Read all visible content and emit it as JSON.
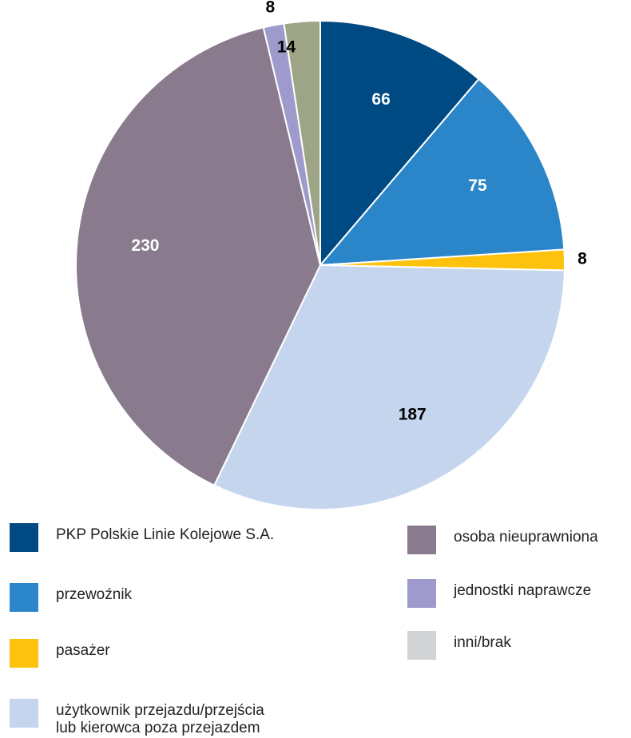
{
  "chart_data": {
    "type": "pie",
    "categories": [
      "PKP Polskie Linie Kolejowe S.A.",
      "przewoźnik",
      "pasażer",
      "użytkownik przejazdu/przejścia\nlub kierowca poza przejazdem",
      "osoba nieuprawniona",
      "jednostki naprawcze",
      "inni/brak"
    ],
    "values": [
      66,
      75,
      8,
      187,
      230,
      8,
      14
    ],
    "colors": [
      "#004a84",
      "#2a86c8",
      "#fdc20e",
      "#c6d5ee",
      "#897b8d",
      "#9e9acb",
      "#9ea587"
    ],
    "legend_colors": [
      "#004a84",
      "#2a86c8",
      "#fdc20e",
      "#c6d5ee",
      "#897b8d",
      "#9e9acb",
      "#d1d3d4"
    ],
    "label_colors": [
      "#ffffff",
      "#ffffff",
      "#000000",
      "#000000",
      "#ffffff",
      "#000000",
      "#000000"
    ]
  }
}
